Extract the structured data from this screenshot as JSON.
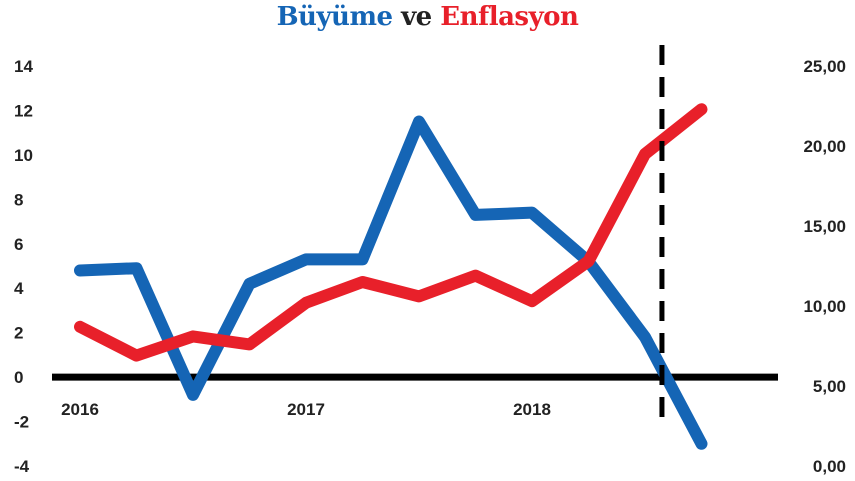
{
  "title": {
    "growth": "Büyüme",
    "and": "ve",
    "inflation": "Enflasyon"
  },
  "colors": {
    "growth": "#1565b5",
    "inflation": "#e8202a",
    "axis": "#000000"
  },
  "chart_data": {
    "type": "line",
    "grid": false,
    "x": [
      0,
      1,
      2,
      3,
      4,
      5,
      6,
      7,
      8,
      9,
      10,
      11
    ],
    "x_tick_labels": [
      {
        "x": 0,
        "label": "2016"
      },
      {
        "x": 4,
        "label": "2017"
      },
      {
        "x": 8,
        "label": "2018"
      }
    ],
    "y_left": {
      "ticks": [
        14,
        12,
        10,
        8,
        6,
        4,
        2,
        0,
        -2,
        -4
      ],
      "range": [
        -4,
        14
      ]
    },
    "y_right": {
      "ticks": [
        "25,00",
        "20,00",
        "15,00",
        "10,00",
        "5,00",
        "0,00"
      ],
      "range": [
        0,
        25
      ]
    },
    "series": [
      {
        "key": "growth",
        "axis": "left",
        "values": [
          4.8,
          4.9,
          -0.8,
          4.2,
          5.3,
          5.3,
          11.5,
          7.3,
          7.4,
          5.2,
          1.8,
          -3.0
        ]
      },
      {
        "key": "inflation",
        "axis": "right",
        "values": [
          8.7,
          6.9,
          8.1,
          7.6,
          10.2,
          11.5,
          10.6,
          11.9,
          10.3,
          12.8,
          19.5,
          22.3
        ]
      }
    ],
    "vertical_marker": {
      "x": 10.3,
      "style": "dashed"
    }
  }
}
